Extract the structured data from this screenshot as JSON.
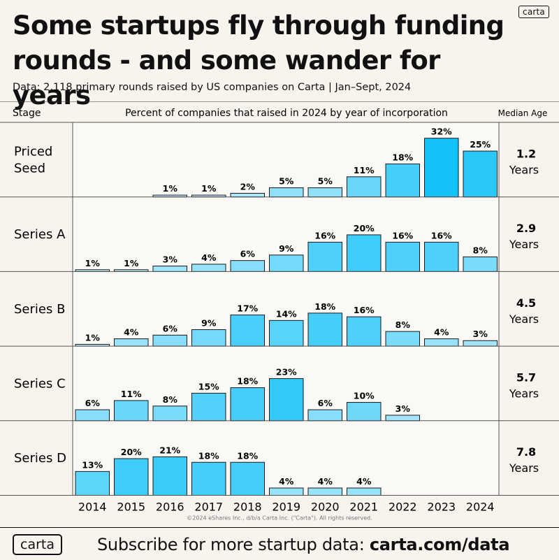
{
  "brand": "carta",
  "title_line1": "Some startups fly through funding",
  "title_line2": "rounds - and some wander for years",
  "subtitle": "Data: 2,118 primary rounds raised by US companies on Carta | Jan–Sept, 2024",
  "copyright": "©2024 eShares Inc., d/b/a Carta Inc. (\"Carta\"). All rights reserved.",
  "footer": {
    "logo": "carta",
    "cta_text": "Subscribe for more startup data:",
    "cta_url": "carta.com/data"
  },
  "colors": {
    "background": "#f7f4ee",
    "text": "#111111",
    "row_divider": "#555555",
    "bar_light": "#e2f3fb",
    "bar_dark": "#12c2f9"
  },
  "chart_data": {
    "type": "bar",
    "title": "Percent of companies that raised in 2024 by year of incorporation",
    "header_stage": "Stage",
    "header_title": "Percent of companies that raised in 2024 by year of incorporation",
    "header_median": "Median Age",
    "categories": [
      "2014",
      "2015",
      "2016",
      "2017",
      "2018",
      "2019",
      "2020",
      "2021",
      "2022",
      "2023",
      "2024"
    ],
    "unit": "%",
    "ylim": [
      0,
      32
    ],
    "series": [
      {
        "name": "Priced Seed",
        "label_lines": [
          "Priced",
          "Seed"
        ],
        "values": [
          null,
          null,
          1,
          1,
          2,
          5,
          5,
          11,
          18,
          32,
          25
        ],
        "median_age": "1.2",
        "median_unit": "Years"
      },
      {
        "name": "Series A",
        "label_lines": [
          "Series A"
        ],
        "values": [
          1,
          1,
          3,
          4,
          6,
          9,
          16,
          20,
          16,
          16,
          8
        ],
        "median_age": "2.9",
        "median_unit": "Years"
      },
      {
        "name": "Series B",
        "label_lines": [
          "Series B"
        ],
        "values": [
          1,
          4,
          6,
          9,
          17,
          14,
          18,
          16,
          8,
          4,
          3
        ],
        "median_age": "4.5",
        "median_unit": "Years"
      },
      {
        "name": "Series C",
        "label_lines": [
          "Series C"
        ],
        "values": [
          6,
          11,
          8,
          15,
          18,
          23,
          6,
          10,
          3,
          null,
          null
        ],
        "median_age": "5.7",
        "median_unit": "Years"
      },
      {
        "name": "Series D",
        "label_lines": [
          "Series D"
        ],
        "values": [
          13,
          20,
          21,
          18,
          18,
          4,
          4,
          4,
          null,
          null,
          null
        ],
        "median_age": "7.8",
        "median_unit": "Years"
      }
    ]
  }
}
